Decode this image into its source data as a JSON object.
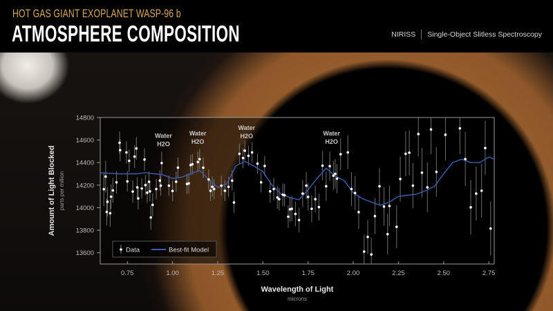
{
  "header": {
    "subtitle": "HOT GAS GIANT EXOPLANET WASP-96 b",
    "title": "ATMOSPHERE COMPOSITION",
    "instrument": "NIRISS",
    "mode": "Single-Object Slitless Spectroscopy"
  },
  "colors": {
    "subtitle": "#d8a859",
    "model_line": "#3a5fb0",
    "data_point": "#ffffff",
    "error_bar": "#8a8a8a",
    "frame": "#9a9a9a"
  },
  "chart_data": {
    "type": "scatter",
    "xlabel": "Wavelength of Light",
    "xlabel_unit": "microns",
    "ylabel": "Amount of Light Blocked",
    "ylabel_unit": "parts per million",
    "xlim": [
      0.6,
      2.78
    ],
    "ylim": [
      13500,
      14800
    ],
    "x_ticks": [
      "0.75",
      "1.00",
      "1.25",
      "1.50",
      "1.75",
      "2.00",
      "2.25",
      "2.50",
      "2.75"
    ],
    "y_ticks": [
      "14800",
      "14600",
      "14400",
      "14200",
      "14000",
      "13800",
      "13600"
    ],
    "grid": false,
    "legend": {
      "position": "bottom-left",
      "entries": [
        "Data",
        "Best-fit Model"
      ]
    },
    "annotations": [
      {
        "label": "Water",
        "formula": "H2O",
        "x": 0.95,
        "y": 14620
      },
      {
        "label": "Water",
        "formula": "H2O",
        "x": 1.14,
        "y": 14640
      },
      {
        "label": "Water",
        "formula": "H2O",
        "x": 1.41,
        "y": 14690
      },
      {
        "label": "Water",
        "formula": "H2O",
        "x": 1.88,
        "y": 14640
      }
    ],
    "series": [
      {
        "name": "Data",
        "kind": "errorbar",
        "points": [
          [
            0.62,
            14164,
            150
          ],
          [
            0.63,
            14276,
            140
          ],
          [
            0.636,
            13962,
            120
          ],
          [
            0.64,
            14052,
            130
          ],
          [
            0.655,
            13950,
            120
          ],
          [
            0.66,
            14097,
            110
          ],
          [
            0.67,
            14153,
            110
          ],
          [
            0.69,
            14225,
            100
          ],
          [
            0.707,
            14576,
            100
          ],
          [
            0.71,
            14510,
            100
          ],
          [
            0.745,
            14490,
            100
          ],
          [
            0.75,
            14233,
            90
          ],
          [
            0.76,
            14415,
            100
          ],
          [
            0.78,
            14143,
            100
          ],
          [
            0.79,
            14453,
            100
          ],
          [
            0.8,
            14525,
            100
          ],
          [
            0.805,
            14180,
            90
          ],
          [
            0.81,
            14082,
            100
          ],
          [
            0.83,
            14170,
            90
          ],
          [
            0.845,
            14427,
            100
          ],
          [
            0.85,
            14200,
            90
          ],
          [
            0.86,
            14133,
            90
          ],
          [
            0.87,
            14230,
            90
          ],
          [
            0.875,
            14145,
            90
          ],
          [
            0.88,
            13913,
            110
          ],
          [
            0.89,
            14025,
            100
          ],
          [
            0.91,
            14165,
            90
          ],
          [
            0.93,
            14240,
            90
          ],
          [
            0.935,
            14195,
            90
          ],
          [
            0.94,
            14396,
            100
          ],
          [
            0.98,
            14195,
            90
          ],
          [
            1.0,
            14148,
            90
          ],
          [
            1.02,
            14230,
            90
          ],
          [
            1.03,
            14355,
            90
          ],
          [
            1.08,
            14210,
            90
          ],
          [
            1.09,
            14215,
            90
          ],
          [
            1.1,
            14378,
            90
          ],
          [
            1.11,
            14385,
            90
          ],
          [
            1.14,
            14405,
            90
          ],
          [
            1.15,
            14430,
            90
          ],
          [
            1.17,
            14355,
            90
          ],
          [
            1.2,
            14250,
            90
          ],
          [
            1.21,
            14150,
            90
          ],
          [
            1.22,
            14185,
            90
          ],
          [
            1.23,
            14165,
            90
          ],
          [
            1.27,
            14195,
            90
          ],
          [
            1.29,
            14150,
            90
          ],
          [
            1.31,
            14185,
            90
          ],
          [
            1.33,
            14240,
            90
          ],
          [
            1.34,
            14046,
            90
          ],
          [
            1.37,
            14478,
            90
          ],
          [
            1.39,
            14440,
            90
          ],
          [
            1.4,
            14506,
            90
          ],
          [
            1.42,
            14460,
            90
          ],
          [
            1.44,
            14490,
            90
          ],
          [
            1.47,
            14390,
            90
          ],
          [
            1.49,
            14225,
            90
          ],
          [
            1.51,
            14370,
            90
          ],
          [
            1.54,
            14145,
            100
          ],
          [
            1.56,
            14165,
            100
          ],
          [
            1.58,
            14090,
            100
          ],
          [
            1.59,
            14075,
            100
          ],
          [
            1.61,
            14115,
            100
          ],
          [
            1.62,
            14110,
            100
          ],
          [
            1.64,
            13920,
            100
          ],
          [
            1.65,
            13985,
            110
          ],
          [
            1.66,
            13990,
            110
          ],
          [
            1.68,
            13944,
            110
          ],
          [
            1.7,
            13890,
            110
          ],
          [
            1.72,
            14125,
            120
          ],
          [
            1.74,
            14195,
            120
          ],
          [
            1.75,
            14095,
            120
          ],
          [
            1.77,
            13990,
            120
          ],
          [
            1.79,
            14075,
            120
          ],
          [
            1.81,
            14005,
            120
          ],
          [
            1.83,
            14372,
            130
          ],
          [
            1.85,
            14190,
            130
          ],
          [
            1.87,
            14368,
            130
          ],
          [
            1.89,
            14284,
            130
          ],
          [
            1.9,
            14300,
            130
          ],
          [
            1.91,
            14257,
            130
          ],
          [
            1.93,
            14474,
            140
          ],
          [
            1.97,
            14490,
            150
          ],
          [
            1.99,
            14165,
            150
          ],
          [
            2.01,
            14130,
            150
          ],
          [
            2.03,
            13960,
            150
          ],
          [
            2.06,
            13610,
            150
          ],
          [
            2.08,
            13740,
            150
          ],
          [
            2.1,
            13585,
            150
          ],
          [
            2.12,
            13925,
            160
          ],
          [
            2.145,
            14190,
            160
          ],
          [
            2.17,
            14010,
            170
          ],
          [
            2.19,
            13765,
            180
          ],
          [
            2.2,
            14015,
            180
          ],
          [
            2.24,
            13830,
            190
          ],
          [
            2.26,
            14254,
            200
          ],
          [
            2.29,
            14478,
            200
          ],
          [
            2.31,
            14488,
            200
          ],
          [
            2.33,
            14195,
            200
          ],
          [
            2.36,
            14653,
            200
          ],
          [
            2.38,
            14310,
            220
          ],
          [
            2.41,
            14180,
            220
          ],
          [
            2.43,
            14694,
            220
          ],
          [
            2.46,
            14317,
            220
          ],
          [
            2.51,
            14647,
            230
          ],
          [
            2.59,
            14704,
            230
          ],
          [
            2.62,
            14431,
            240
          ],
          [
            2.65,
            14003,
            240
          ],
          [
            2.68,
            14125,
            240
          ],
          [
            2.71,
            14150,
            240
          ],
          [
            2.73,
            14529,
            240
          ],
          [
            2.76,
            13815,
            240
          ]
        ]
      },
      {
        "name": "Best-fit Model",
        "kind": "line",
        "points": [
          [
            0.6,
            14310
          ],
          [
            0.7,
            14300
          ],
          [
            0.8,
            14300
          ],
          [
            0.85,
            14310
          ],
          [
            0.9,
            14300
          ],
          [
            0.95,
            14290
          ],
          [
            1.0,
            14260
          ],
          [
            1.05,
            14270
          ],
          [
            1.1,
            14300
          ],
          [
            1.15,
            14330
          ],
          [
            1.2,
            14250
          ],
          [
            1.25,
            14180
          ],
          [
            1.3,
            14210
          ],
          [
            1.35,
            14370
          ],
          [
            1.4,
            14410
          ],
          [
            1.45,
            14370
          ],
          [
            1.5,
            14320
          ],
          [
            1.55,
            14200
          ],
          [
            1.6,
            14120
          ],
          [
            1.65,
            14090
          ],
          [
            1.7,
            14070
          ],
          [
            1.75,
            14160
          ],
          [
            1.8,
            14260
          ],
          [
            1.85,
            14350
          ],
          [
            1.9,
            14280
          ],
          [
            1.95,
            14240
          ],
          [
            2.0,
            14130
          ],
          [
            2.05,
            14080
          ],
          [
            2.1,
            14050
          ],
          [
            2.15,
            14020
          ],
          [
            2.2,
            14050
          ],
          [
            2.25,
            14100
          ],
          [
            2.3,
            14110
          ],
          [
            2.35,
            14120
          ],
          [
            2.4,
            14150
          ],
          [
            2.45,
            14190
          ],
          [
            2.5,
            14300
          ],
          [
            2.55,
            14400
          ],
          [
            2.6,
            14430
          ],
          [
            2.65,
            14400
          ],
          [
            2.7,
            14400
          ],
          [
            2.75,
            14450
          ],
          [
            2.78,
            14430
          ]
        ]
      }
    ]
  }
}
